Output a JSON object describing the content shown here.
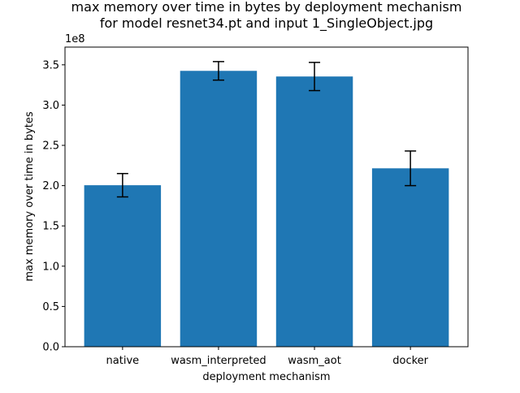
{
  "chart_data": {
    "type": "bar",
    "title": "max memory over time in bytes by deployment mechanism",
    "subtitle": "for model resnet34.pt and input 1_SingleObject.jpg",
    "xlabel": "deployment mechanism",
    "ylabel": "max memory over time in bytes",
    "y_scale_label": "1e8",
    "y_scale": 100000000,
    "ylim": [
      0,
      372000000
    ],
    "y_ticks": [
      0,
      50000000,
      100000000,
      150000000,
      200000000,
      250000000,
      300000000,
      350000000
    ],
    "y_tick_labels": [
      "0.0",
      "0.5",
      "1.0",
      "1.5",
      "2.0",
      "2.5",
      "3.0",
      "3.5"
    ],
    "categories": [
      "native",
      "wasm_interpreted",
      "wasm_aot",
      "docker"
    ],
    "values": [
      200500000,
      342500000,
      335500000,
      221500000
    ],
    "error": [
      14500000,
      11500000,
      17500000,
      21500000
    ],
    "bar_color": "#1f77b4",
    "error_color": "#000000",
    "grid": false,
    "legend": "none"
  }
}
